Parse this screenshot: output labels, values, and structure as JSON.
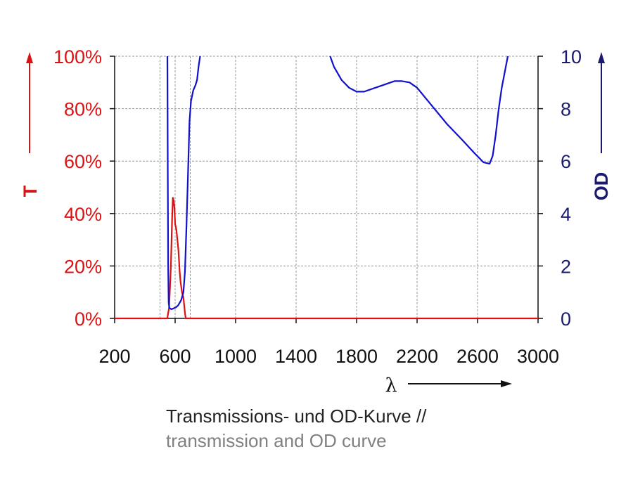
{
  "chart_data": {
    "type": "line",
    "xlabel": "λ",
    "left_axis": {
      "label": "T",
      "range": [
        0,
        100
      ],
      "ticks": [
        0,
        20,
        40,
        60,
        80,
        100
      ],
      "tick_labels": [
        "0%",
        "20%",
        "40%",
        "60%",
        "80%",
        "100%"
      ],
      "color": "#dd1111"
    },
    "right_axis": {
      "label": "OD",
      "range": [
        0,
        10
      ],
      "ticks": [
        0,
        2,
        4,
        6,
        8,
        10
      ],
      "tick_labels": [
        "0",
        "2",
        "4",
        "6",
        "8",
        "10"
      ],
      "color": "#1a1a6e"
    },
    "x_axis": {
      "range": [
        200,
        3000
      ],
      "ticks": [
        200,
        600,
        1000,
        1400,
        1800,
        2200,
        2600,
        3000
      ],
      "tick_labels": [
        "200",
        "600",
        "1000",
        "1400",
        "1800",
        "2200",
        "2600",
        "3000"
      ]
    },
    "grid": true,
    "series": [
      {
        "axis": "left",
        "color": "#dd1111",
        "points": [
          [
            200,
            0
          ],
          [
            548,
            0
          ],
          [
            560,
            4
          ],
          [
            572,
            20
          ],
          [
            580,
            38
          ],
          [
            585,
            46
          ],
          [
            590,
            45
          ],
          [
            596,
            42
          ],
          [
            600,
            36
          ],
          [
            608,
            34
          ],
          [
            615,
            30
          ],
          [
            622,
            26
          ],
          [
            630,
            18
          ],
          [
            636,
            14
          ],
          [
            645,
            10
          ],
          [
            655,
            8
          ],
          [
            660,
            5
          ],
          [
            665,
            2
          ],
          [
            670,
            0
          ],
          [
            3000,
            0
          ]
        ]
      },
      {
        "axis": "right",
        "color": "#1111cc",
        "points": [
          [
            549,
            10
          ],
          [
            551,
            6
          ],
          [
            554,
            2
          ],
          [
            557,
            0.6
          ],
          [
            562,
            0.4
          ],
          [
            575,
            0.35
          ],
          [
            590,
            0.38
          ],
          [
            605,
            0.42
          ],
          [
            620,
            0.5
          ],
          [
            640,
            0.7
          ],
          [
            655,
            1
          ],
          [
            665,
            1.8
          ],
          [
            675,
            3.5
          ],
          [
            685,
            5.5
          ],
          [
            695,
            7.5
          ],
          [
            705,
            8.3
          ],
          [
            720,
            8.7
          ],
          [
            735,
            8.9
          ],
          [
            745,
            9.1
          ],
          [
            755,
            9.6
          ],
          [
            765,
            10
          ]
        ],
        "points2": [
          [
            1625,
            10
          ],
          [
            1650,
            9.6
          ],
          [
            1700,
            9.1
          ],
          [
            1750,
            8.8
          ],
          [
            1800,
            8.65
          ],
          [
            1850,
            8.65
          ],
          [
            1900,
            8.75
          ],
          [
            1950,
            8.85
          ],
          [
            2000,
            8.95
          ],
          [
            2050,
            9.05
          ],
          [
            2100,
            9.05
          ],
          [
            2150,
            9.0
          ],
          [
            2200,
            8.8
          ],
          [
            2300,
            8.1
          ],
          [
            2400,
            7.4
          ],
          [
            2500,
            6.8
          ],
          [
            2580,
            6.3
          ],
          [
            2640,
            5.95
          ],
          [
            2680,
            5.9
          ],
          [
            2700,
            6.2
          ],
          [
            2720,
            7.0
          ],
          [
            2740,
            8.0
          ],
          [
            2760,
            8.8
          ],
          [
            2780,
            9.4
          ],
          [
            2800,
            10
          ]
        ]
      }
    ]
  },
  "caption": {
    "line1": "Transmissions- und OD-Kurve //",
    "line2": "transmission and OD curve"
  }
}
